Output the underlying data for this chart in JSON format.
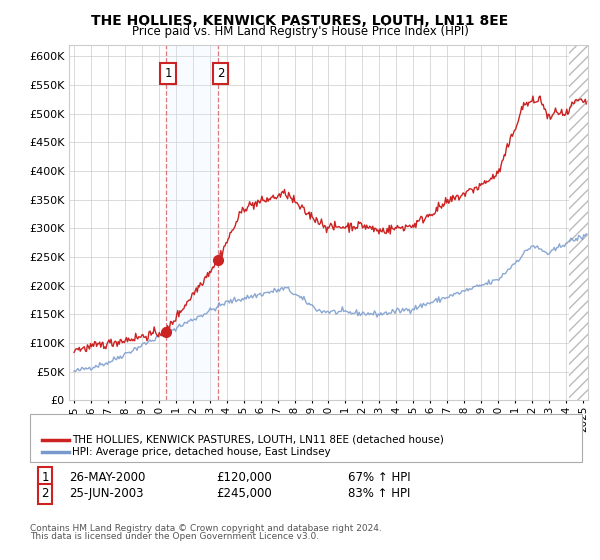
{
  "title": "THE HOLLIES, KENWICK PASTURES, LOUTH, LN11 8EE",
  "subtitle": "Price paid vs. HM Land Registry's House Price Index (HPI)",
  "ylabel_ticks": [
    "£0",
    "£50K",
    "£100K",
    "£150K",
    "£200K",
    "£250K",
    "£300K",
    "£350K",
    "£400K",
    "£450K",
    "£500K",
    "£550K",
    "£600K"
  ],
  "ytick_vals": [
    0,
    50000,
    100000,
    150000,
    200000,
    250000,
    300000,
    350000,
    400000,
    450000,
    500000,
    550000,
    600000
  ],
  "ylim": [
    0,
    620000
  ],
  "xlim_start": 1994.7,
  "xlim_end": 2025.3,
  "sale1_x": 2000.4,
  "sale1_y": 120000,
  "sale1_label": "1",
  "sale2_x": 2003.48,
  "sale2_y": 245000,
  "sale2_label": "2",
  "sale1_date": "26-MAY-2000",
  "sale1_price": "£120,000",
  "sale1_hpi": "67% ↑ HPI",
  "sale2_date": "25-JUN-2003",
  "sale2_price": "£245,000",
  "sale2_hpi": "83% ↑ HPI",
  "legend_line1": "THE HOLLIES, KENWICK PASTURES, LOUTH, LN11 8EE (detached house)",
  "legend_line2": "HPI: Average price, detached house, East Lindsey",
  "footer1": "Contains HM Land Registry data © Crown copyright and database right 2024.",
  "footer2": "This data is licensed under the Open Government Licence v3.0.",
  "line_color_red": "#cc2222",
  "line_color_blue": "#7799cc",
  "background_color": "#ffffff",
  "grid_color": "#cccccc",
  "shade_color": "#ddeeff",
  "hatch_start": 2024.17,
  "x_ticks": [
    1995,
    1996,
    1997,
    1998,
    1999,
    2000,
    2001,
    2002,
    2003,
    2004,
    2005,
    2006,
    2007,
    2008,
    2009,
    2010,
    2011,
    2012,
    2013,
    2014,
    2015,
    2016,
    2017,
    2018,
    2019,
    2020,
    2021,
    2022,
    2023,
    2024,
    2025
  ]
}
